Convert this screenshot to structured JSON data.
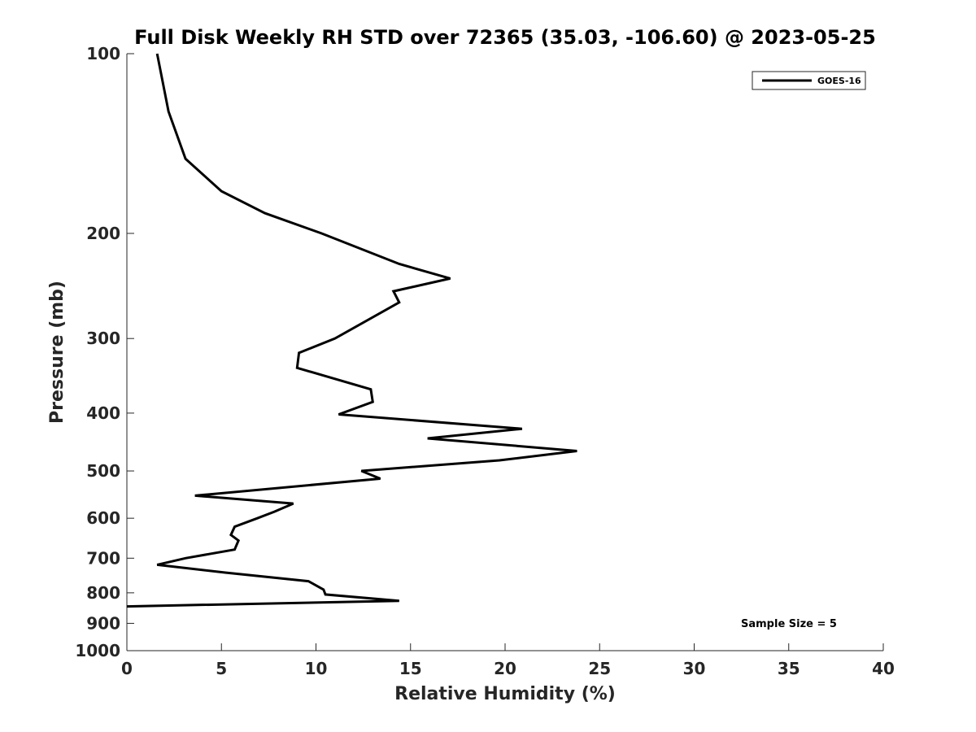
{
  "chart_data": {
    "type": "line",
    "title": "Full Disk Weekly RH STD over 72365 (35.03, -106.60) @ 2023-05-25",
    "xlabel": "Relative Humidity (%)",
    "ylabel": "Pressure (mb)",
    "xlim": [
      0,
      40
    ],
    "ylim": [
      100,
      1000
    ],
    "yscale": "log",
    "y_reversed": true,
    "grid": false,
    "xticks": [
      0,
      5,
      10,
      15,
      20,
      25,
      30,
      35,
      40
    ],
    "xtick_labels": [
      "0",
      "5",
      "10",
      "15",
      "20",
      "25",
      "30",
      "35",
      "40"
    ],
    "yticks": [
      100,
      200,
      300,
      400,
      500,
      600,
      700,
      800,
      900,
      1000
    ],
    "ytick_labels": [
      "100",
      "200",
      "300",
      "400",
      "500",
      "600",
      "700",
      "800",
      "900",
      "1000"
    ],
    "legend": {
      "position": "top-right",
      "entries": [
        "GOES-16"
      ]
    },
    "annotation": "Sample Size = 5",
    "series": [
      {
        "name": "GOES-16",
        "color": "#000000",
        "points": [
          {
            "rh": 1.6,
            "p": 100
          },
          {
            "rh": 2.2,
            "p": 125
          },
          {
            "rh": 3.1,
            "p": 150
          },
          {
            "rh": 5.0,
            "p": 170
          },
          {
            "rh": 7.3,
            "p": 185
          },
          {
            "rh": 10.3,
            "p": 200
          },
          {
            "rh": 14.4,
            "p": 225
          },
          {
            "rh": 17.1,
            "p": 238
          },
          {
            "rh": 14.1,
            "p": 250
          },
          {
            "rh": 14.4,
            "p": 261
          },
          {
            "rh": 11.0,
            "p": 300
          },
          {
            "rh": 9.1,
            "p": 317
          },
          {
            "rh": 9.0,
            "p": 336
          },
          {
            "rh": 12.9,
            "p": 365
          },
          {
            "rh": 13.0,
            "p": 383
          },
          {
            "rh": 11.2,
            "p": 402
          },
          {
            "rh": 20.9,
            "p": 425
          },
          {
            "rh": 15.9,
            "p": 441
          },
          {
            "rh": 23.8,
            "p": 463
          },
          {
            "rh": 19.7,
            "p": 480
          },
          {
            "rh": 12.4,
            "p": 500
          },
          {
            "rh": 13.4,
            "p": 515
          },
          {
            "rh": 3.6,
            "p": 550
          },
          {
            "rh": 8.8,
            "p": 567
          },
          {
            "rh": 7.8,
            "p": 585
          },
          {
            "rh": 6.9,
            "p": 600
          },
          {
            "rh": 5.7,
            "p": 620
          },
          {
            "rh": 5.5,
            "p": 640
          },
          {
            "rh": 5.9,
            "p": 654
          },
          {
            "rh": 5.7,
            "p": 677
          },
          {
            "rh": 3.1,
            "p": 700
          },
          {
            "rh": 1.6,
            "p": 718
          },
          {
            "rh": 5.2,
            "p": 740
          },
          {
            "rh": 9.6,
            "p": 765
          },
          {
            "rh": 10.4,
            "p": 790
          },
          {
            "rh": 10.5,
            "p": 805
          },
          {
            "rh": 14.4,
            "p": 825
          },
          {
            "rh": 0.0,
            "p": 843
          }
        ]
      }
    ]
  }
}
